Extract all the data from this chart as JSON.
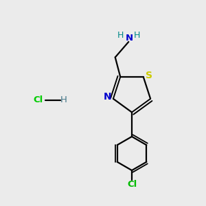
{
  "bg_color": "#ebebeb",
  "bond_color": "#000000",
  "S_color": "#cccc00",
  "N_color": "#0000cc",
  "Cl_color": "#00bb00",
  "NH2_H_color": "#008888",
  "HCl_H_color": "#447788",
  "HCl_Cl_color": "#00cc00",
  "figsize": [
    3.0,
    3.0
  ],
  "dpi": 100,
  "xlim": [
    0,
    10
  ],
  "ylim": [
    0,
    10
  ]
}
